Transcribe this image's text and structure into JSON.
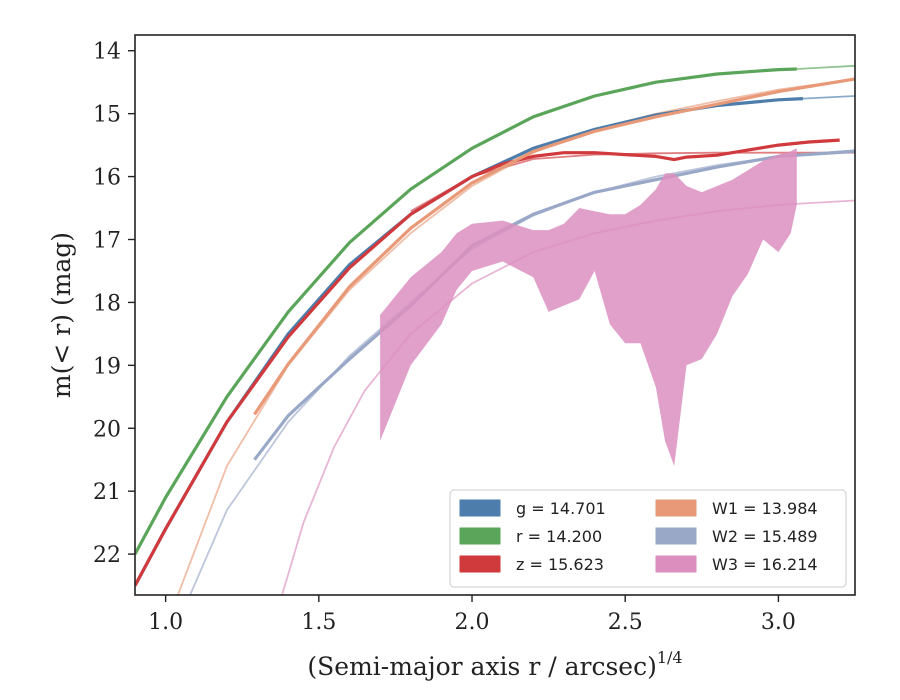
{
  "chart_data": {
    "type": "line",
    "title": "",
    "xlabel": "(Semi-major axis r / arcsec)",
    "xlabel_italic": "r",
    "xlabel_exponent": "1/4",
    "ylabel": "m(< r) (mag)",
    "xlim": [
      0.9,
      3.25
    ],
    "ylim": [
      22.65,
      13.75
    ],
    "y_inverted": true,
    "xticks": [
      "1.0",
      "1.5",
      "2.0",
      "2.5",
      "3.0"
    ],
    "xtick_values": [
      1.0,
      1.5,
      2.0,
      2.5,
      3.0
    ],
    "yticks": [
      "14",
      "15",
      "16",
      "17",
      "18",
      "19",
      "20",
      "21",
      "22"
    ],
    "ytick_values": [
      14,
      15,
      16,
      17,
      18,
      19,
      20,
      21,
      22
    ],
    "grid": false,
    "legend_position": "lower-right",
    "series": [
      {
        "key": "g",
        "name": "g = 14.701",
        "color": "#4c7dab",
        "x": [
          0.9,
          1.0,
          1.2,
          1.4,
          1.6,
          1.8,
          2.0,
          2.2,
          2.4,
          2.6,
          2.8,
          3.0,
          3.08
        ],
        "y": [
          22.5,
          21.6,
          19.9,
          18.5,
          17.4,
          16.6,
          16.0,
          15.55,
          15.25,
          15.02,
          14.87,
          14.78,
          14.76
        ],
        "model": {
          "x": [
            3.08,
            3.25
          ],
          "y": [
            14.76,
            14.72
          ]
        }
      },
      {
        "key": "r",
        "name": "r = 14.200",
        "color": "#5aa55a",
        "x": [
          0.9,
          1.0,
          1.2,
          1.4,
          1.6,
          1.8,
          2.0,
          2.2,
          2.4,
          2.6,
          2.8,
          3.0,
          3.06
        ],
        "y": [
          22.0,
          21.1,
          19.5,
          18.15,
          17.05,
          16.2,
          15.55,
          15.05,
          14.72,
          14.5,
          14.37,
          14.3,
          14.29
        ],
        "model": {
          "x": [
            3.06,
            3.25
          ],
          "y": [
            14.29,
            14.24
          ]
        }
      },
      {
        "key": "z",
        "name": "z = 15.623",
        "color": "#d03a3d",
        "x": [
          0.9,
          1.0,
          1.2,
          1.4,
          1.6,
          1.8,
          1.9,
          2.0,
          2.1,
          2.2,
          2.3,
          2.4,
          2.5,
          2.6,
          2.66,
          2.7,
          2.8,
          2.9,
          3.0,
          3.1,
          3.2
        ],
        "y": [
          22.5,
          21.6,
          19.9,
          18.55,
          17.45,
          16.6,
          16.3,
          16.0,
          15.8,
          15.68,
          15.62,
          15.62,
          15.65,
          15.68,
          15.73,
          15.69,
          15.66,
          15.58,
          15.5,
          15.45,
          15.42
        ],
        "model": {
          "x": [
            1.8,
            2.0,
            2.2,
            2.4,
            2.6,
            2.8,
            3.0,
            3.25
          ],
          "y": [
            16.55,
            16.0,
            15.72,
            15.65,
            15.63,
            15.62,
            15.62,
            15.62
          ]
        }
      },
      {
        "key": "W1",
        "name": "W1 = 13.984",
        "color": "#e89978",
        "x": [
          1.29,
          1.4,
          1.6,
          1.8,
          2.0,
          2.2,
          2.4,
          2.6,
          2.8,
          3.0,
          3.25
        ],
        "y": [
          19.78,
          18.98,
          17.75,
          16.82,
          16.1,
          15.6,
          15.28,
          15.05,
          14.85,
          14.65,
          14.45
        ],
        "model": {
          "x": [
            1.04,
            1.2,
            1.4,
            1.6,
            1.8,
            2.0,
            2.2,
            2.4,
            2.6,
            2.8,
            3.0,
            3.25
          ],
          "y": [
            22.65,
            20.6,
            19.0,
            17.8,
            16.9,
            16.15,
            15.62,
            15.25,
            15.0,
            14.8,
            14.62,
            14.45
          ]
        }
      },
      {
        "key": "W2",
        "name": "W2 = 15.489",
        "color": "#9aa8c8",
        "x": [
          1.29,
          1.4,
          1.6,
          1.8,
          2.0,
          2.2,
          2.4,
          2.6,
          2.8,
          3.0,
          3.25
        ],
        "y": [
          20.5,
          19.8,
          18.9,
          18.05,
          17.1,
          16.6,
          16.25,
          16.05,
          15.85,
          15.68,
          15.6
        ],
        "model": {
          "x": [
            1.08,
            1.2,
            1.4,
            1.6,
            1.8,
            2.0,
            2.2,
            2.4,
            2.6,
            2.8,
            3.0,
            3.25
          ],
          "y": [
            22.65,
            21.3,
            19.9,
            18.85,
            18.0,
            17.15,
            16.62,
            16.25,
            16.0,
            15.82,
            15.68,
            15.58
          ]
        }
      },
      {
        "key": "W3",
        "name": "W3 = 16.214",
        "color": "#dc8fbf",
        "band_x": [
          1.7,
          1.8,
          1.9,
          1.95,
          2.0,
          2.1,
          2.2,
          2.25,
          2.3,
          2.35,
          2.4,
          2.45,
          2.5,
          2.55,
          2.6,
          2.63,
          2.66,
          2.7,
          2.75,
          2.8,
          2.85,
          2.9,
          2.95,
          3.0,
          3.04,
          3.06
        ],
        "band_upper": [
          18.2,
          17.6,
          17.2,
          16.9,
          16.75,
          16.7,
          16.85,
          16.85,
          16.75,
          16.5,
          16.55,
          16.6,
          16.6,
          16.45,
          16.2,
          15.95,
          15.95,
          16.15,
          16.25,
          16.15,
          16.05,
          15.9,
          15.75,
          15.65,
          15.6,
          15.55
        ],
        "band_lower": [
          20.2,
          19.0,
          18.35,
          17.8,
          17.5,
          17.35,
          17.6,
          18.15,
          18.05,
          17.95,
          17.5,
          18.35,
          18.65,
          18.65,
          19.35,
          20.2,
          20.6,
          19.0,
          18.9,
          18.5,
          17.9,
          17.55,
          17.0,
          17.2,
          16.9,
          16.45
        ],
        "model": {
          "x": [
            1.38,
            1.45,
            1.55,
            1.65,
            1.8,
            2.0,
            2.2,
            2.4,
            2.6,
            2.8,
            3.0,
            3.25
          ],
          "y": [
            22.65,
            21.5,
            20.3,
            19.4,
            18.5,
            17.7,
            17.2,
            16.9,
            16.7,
            16.55,
            16.45,
            16.38
          ]
        }
      }
    ]
  }
}
